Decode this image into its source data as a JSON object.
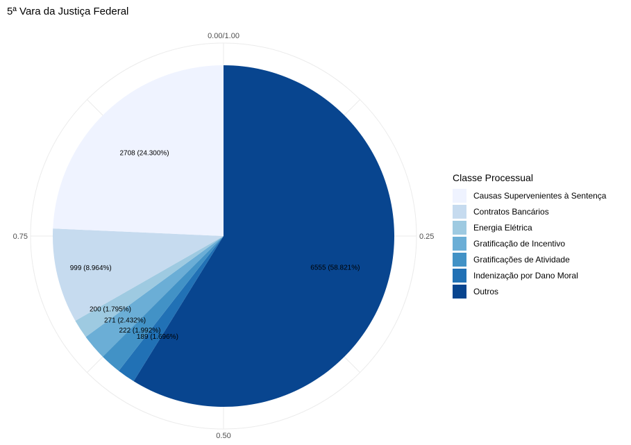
{
  "chart_data": {
    "type": "pie",
    "title": "5ª Vara da Justiça Federal",
    "legend_title": "Classe Processual",
    "legend_position": "right",
    "grid": true,
    "axis_ticks": [
      "0.00/1.00",
      "0.25",
      "0.50",
      "0.75"
    ],
    "slices": [
      {
        "name": "Outros",
        "value": 6555,
        "percent": 58.821,
        "label": "6555 (58.821%)",
        "color": "#08458f"
      },
      {
        "name": "Indenização por Dano Moral",
        "value": 189,
        "percent": 1.696,
        "label": "189 (1.696%)",
        "color": "#2171b5"
      },
      {
        "name": "Gratificações de Atividade",
        "value": 222,
        "percent": 1.992,
        "label": "222 (1.992%)",
        "color": "#4292c6"
      },
      {
        "name": "Gratificação de Incentivo",
        "value": 271,
        "percent": 2.432,
        "label": "271 (2.432%)",
        "color": "#6baed6"
      },
      {
        "name": "Energia Elétrica",
        "value": 200,
        "percent": 1.795,
        "label": "200 (1.795%)",
        "color": "#9ecae1"
      },
      {
        "name": "Contratos Bancários",
        "value": 999,
        "percent": 8.964,
        "label": "999 (8.964%)",
        "color": "#c6dbef"
      },
      {
        "name": "Causas Supervenientes à Sentença",
        "value": 2708,
        "percent": 24.3,
        "label": "2708 (24.300%)",
        "color": "#eff3ff"
      }
    ],
    "legend_order": [
      "Causas Supervenientes à Sentença",
      "Contratos Bancários",
      "Energia Elétrica",
      "Gratificação de Incentivo",
      "Gratificações de Atividade",
      "Indenização por Dano Moral",
      "Outros"
    ]
  }
}
